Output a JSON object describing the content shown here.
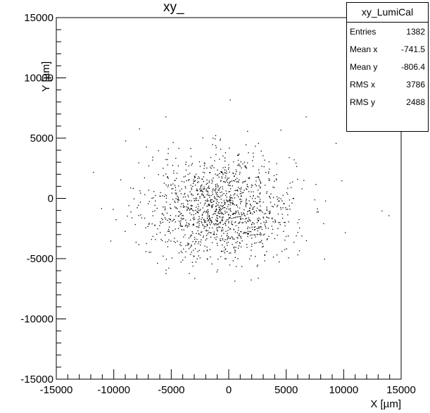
{
  "chart_data": {
    "type": "scatter",
    "title": "xy_",
    "xlabel": "X [µm]",
    "ylabel": "Y [µm]",
    "xlim": [
      -15000,
      15000
    ],
    "ylim": [
      -15000,
      15000
    ],
    "x_ticks": [
      "-15000",
      "-10000",
      "-5000",
      "0",
      "5000",
      "10000",
      "15000"
    ],
    "y_ticks": [
      "-15000",
      "-10000",
      "-5000",
      "0",
      "5000",
      "10000",
      "15000"
    ],
    "grid": false,
    "legend": "none",
    "marker_color": "#000000",
    "stats": {
      "name": "xy_LumiCal",
      "entries": 1382,
      "mean_x": -741.5,
      "mean_y": -806.4,
      "rms_x": 3786,
      "rms_y": 2488
    },
    "stats_labels": {
      "entries": "Entries",
      "mean_x": "Mean x",
      "mean_y": "Mean y",
      "rms_x": "RMS x",
      "rms_y": "RMS y"
    },
    "outlier_points": [
      [
        100,
        8200
      ],
      [
        -5500,
        6800
      ],
      [
        6700,
        6800
      ],
      [
        -7800,
        5800
      ],
      [
        -9000,
        4800
      ],
      [
        9300,
        4600
      ],
      [
        -11800,
        2200
      ],
      [
        9800,
        1500
      ],
      [
        -11100,
        -800
      ],
      [
        13300,
        -1000
      ],
      [
        13900,
        -1400
      ],
      [
        -10300,
        -3500
      ],
      [
        -5500,
        -6200
      ],
      [
        -3000,
        -6600
      ],
      [
        8300,
        -5000
      ],
      [
        10100,
        -2800
      ],
      [
        -8100,
        -3600
      ],
      [
        -7200,
        4300
      ],
      [
        4500,
        5700
      ],
      [
        1600,
        5600
      ]
    ]
  }
}
